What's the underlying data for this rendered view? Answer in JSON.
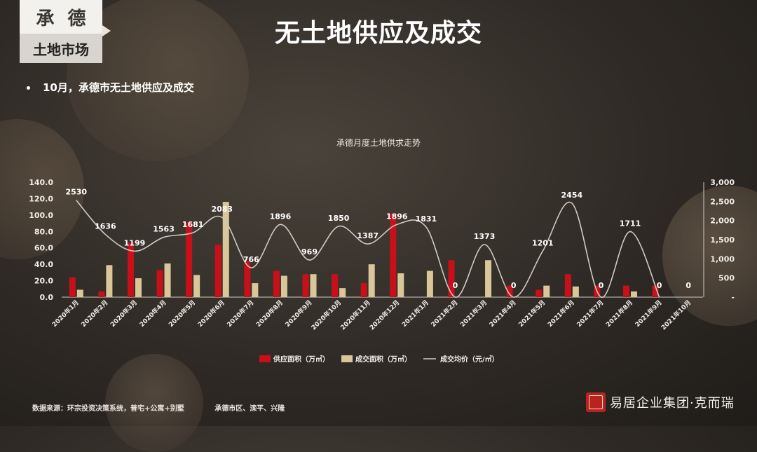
{
  "tag": {
    "city_chars": [
      "承",
      "德"
    ],
    "section": "土地市场"
  },
  "page_title": "无土地供应及成交",
  "subtitle": "10月，承德市无土地供应及成交",
  "footer": {
    "source": "数据来源：环宗投资决策系统，普宅+公寓+别墅",
    "area": "承德市区、滦平、兴隆"
  },
  "brand": {
    "name": "易居企业集团·克而瑞"
  },
  "colors": {
    "supply": "#c8101a",
    "transaction": "#d9c79a",
    "price": "#cfcac3"
  },
  "chart_data": {
    "type": "bar",
    "title": "承德月度土地供求走势",
    "categories": [
      "2020年1月",
      "2020年2月",
      "2020年3月",
      "2020年4月",
      "2020年5月",
      "2020年6月",
      "2020年7月",
      "2020年8月",
      "2020年9月",
      "2020年10月",
      "2020年11月",
      "2020年12月",
      "2021年1月",
      "2021年2月",
      "2021年3月",
      "2021年4月",
      "2021年5月",
      "2021年6月",
      "2021年7月",
      "2021年8月",
      "2021年9月",
      "2021年10月"
    ],
    "series": [
      {
        "name": "供应面积（万㎡）",
        "type": "bar",
        "axis": "left",
        "values": [
          24,
          7,
          66,
          33,
          91,
          64,
          44,
          32,
          28,
          28,
          17,
          102,
          0,
          45,
          0,
          14,
          9,
          28,
          14,
          14,
          14,
          0
        ]
      },
      {
        "name": "成交面积（万㎡）",
        "type": "bar",
        "axis": "left",
        "values": [
          9,
          39,
          23,
          41,
          27,
          116,
          17,
          26,
          28,
          11,
          40,
          29,
          32,
          0,
          45,
          0,
          14,
          13,
          0,
          7,
          0,
          0
        ]
      },
      {
        "name": "成交均价（元/㎡）",
        "type": "line",
        "axis": "right",
        "values": [
          2530,
          1636,
          1199,
          1563,
          1681,
          2083,
          766,
          1896,
          969,
          1850,
          1387,
          1896,
          1831,
          0,
          1373,
          0,
          1201,
          2454,
          0,
          1711,
          0,
          0
        ]
      }
    ],
    "y_left": {
      "min": 0,
      "max": 140,
      "ticks": [
        "0.0",
        "20.0",
        "40.0",
        "60.0",
        "80.0",
        "100.0",
        "120.0",
        "140.0"
      ]
    },
    "y_right": {
      "min": 0,
      "max": 3000,
      "ticks": [
        "-",
        "500",
        "1,000",
        "1,500",
        "2,000",
        "2,500",
        "3,000"
      ]
    },
    "price_labels": [
      "2530",
      "1636",
      "1199",
      "1563",
      "1681",
      "2083",
      "766",
      "1896",
      "969",
      "1850",
      "1387",
      "1896",
      "1831",
      "0",
      "1373",
      "0",
      "1201",
      "2454",
      "0",
      "1711",
      "0",
      "0"
    ],
    "legend_position": "bottom",
    "grid": false
  }
}
